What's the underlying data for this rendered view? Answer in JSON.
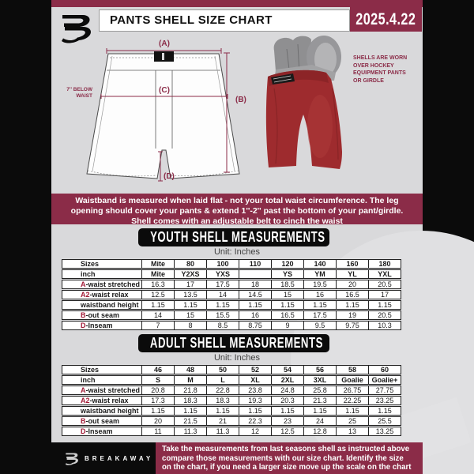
{
  "header": {
    "title": "PANTS SHELL SIZE CHART",
    "date": "2025.4.22",
    "brand": "BREAKAWAY"
  },
  "colors": {
    "maroon": "#8b2c48",
    "accent_red": "#a31c38",
    "black": "#0b0b0b",
    "paper_gray": "#d9d9db",
    "shell_red": "#9e2b2e"
  },
  "diagram": {
    "labels": {
      "a": "(A)",
      "b": "(B)",
      "c": "(C)",
      "d": "(D)"
    },
    "below_waist_lines": [
      "7'' BELOW",
      "WAIST"
    ],
    "photo_note_lines": [
      "SHELLS ARE WORN",
      "OVER HOCKEY",
      "EQUIPMENT PANTS",
      "OR GIRDLE"
    ]
  },
  "notice_lines": [
    "Waistband is measured when laid flat - not your total waist circumference. The leg",
    "opening should cover your pants & extend 1''-2'' past the bottom of your pant/girdle.",
    "Shell comes with an adjustable belt to cinch the waist"
  ],
  "youth": {
    "heading": "YOUTH SHELL MEASUREMENTS",
    "unit": "Unit: Inches",
    "table": {
      "header_rows": [
        {
          "label": "Sizes",
          "values": [
            "Mite",
            "80",
            "100",
            "110",
            "120",
            "140",
            "160",
            "180"
          ]
        },
        {
          "label": "inch",
          "values": [
            "Mite",
            "Y2XS",
            "YXS",
            "",
            "YS",
            "YM",
            "YL",
            "YXL"
          ]
        }
      ],
      "data_rows": [
        {
          "prefix": "A",
          "label": "-waist stretched",
          "values": [
            "16.3",
            "17",
            "17.5",
            "18",
            "18.5",
            "19.5",
            "20",
            "20.5"
          ]
        },
        {
          "prefix": "A2",
          "label": "-waist relax",
          "values": [
            "12.5",
            "13.5",
            "14",
            "14.5",
            "15",
            "16",
            "16.5",
            "17"
          ]
        },
        {
          "prefix": "",
          "label": "waistband height",
          "values": [
            "1.15",
            "1.15",
            "1.15",
            "1.15",
            "1.15",
            "1.15",
            "1.15",
            "1.15"
          ]
        },
        {
          "prefix": "B",
          "label": "-out seam",
          "values": [
            "14",
            "15",
            "15.5",
            "16",
            "16.5",
            "17.5",
            "19",
            "20.5"
          ]
        },
        {
          "prefix": "D",
          "label": "-Inseam",
          "values": [
            "7",
            "8",
            "8.5",
            "8.75",
            "9",
            "9.5",
            "9.75",
            "10.3"
          ]
        }
      ]
    }
  },
  "adult": {
    "heading": "ADULT SHELL MEASUREMENTS",
    "unit": "Unit: Inches",
    "table": {
      "header_rows": [
        {
          "label": "Sizes",
          "values": [
            "46",
            "48",
            "50",
            "52",
            "54",
            "56",
            "58",
            "60"
          ]
        },
        {
          "label": "inch",
          "values": [
            "S",
            "M",
            "L",
            "XL",
            "2XL",
            "3XL",
            "Goalie",
            "Goalie+"
          ]
        }
      ],
      "data_rows": [
        {
          "prefix": "A",
          "label": "-waist stretched",
          "values": [
            "20.8",
            "21.8",
            "22.8",
            "23.8",
            "24.8",
            "25.8",
            "26.75",
            "27.75"
          ]
        },
        {
          "prefix": "A2",
          "label": "-waist relax",
          "values": [
            "17.3",
            "18.3",
            "18.3",
            "19.3",
            "20.3",
            "21.3",
            "22.25",
            "23.25"
          ]
        },
        {
          "prefix": "",
          "label": "waistband height",
          "values": [
            "1.15",
            "1.15",
            "1.15",
            "1.15",
            "1.15",
            "1.15",
            "1.15",
            "1.15"
          ]
        },
        {
          "prefix": "B",
          "label": "-out seam",
          "values": [
            "20",
            "21.5",
            "21",
            "22.3",
            "23",
            "24",
            "25",
            "25.5"
          ]
        },
        {
          "prefix": "D",
          "label": "-Inseam",
          "values": [
            "11",
            "11.3",
            "11.3",
            "12",
            "12.5",
            "12.8",
            "13",
            "13.25"
          ]
        }
      ]
    }
  },
  "footer_lines": [
    "Take the measurements from last seasons shell as instructed above",
    "compare those measurements  with our size chart. Identify the size",
    "on the chart, if you need a larger size move up the scale on the chart"
  ]
}
